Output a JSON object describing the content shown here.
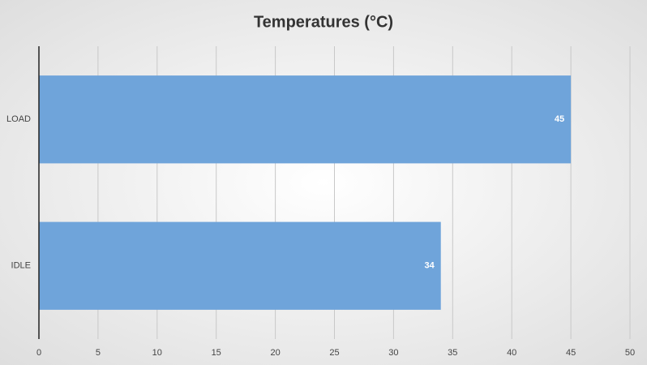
{
  "chart_data": {
    "type": "bar",
    "orientation": "horizontal",
    "title": "Temperatures (°C)",
    "categories": [
      "LOAD",
      "IDLE"
    ],
    "values": [
      45,
      34
    ],
    "color": "#6fa4da",
    "xlim": [
      0,
      50
    ],
    "xticks": [
      0,
      5,
      10,
      15,
      20,
      25,
      30,
      35,
      40,
      45,
      50
    ],
    "grid": true,
    "data_labels": true
  }
}
